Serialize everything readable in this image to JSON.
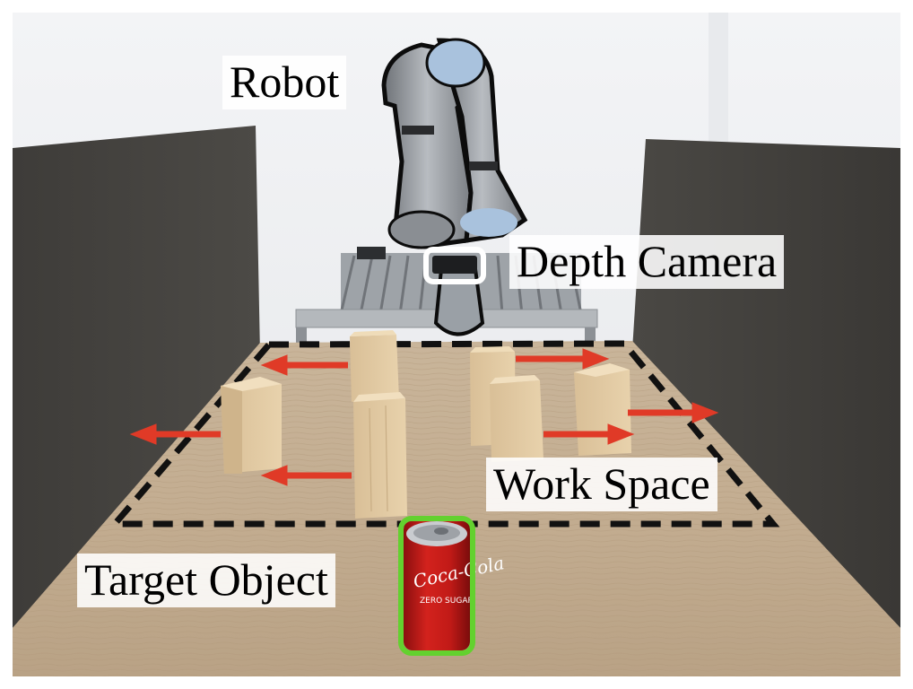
{
  "labels": {
    "robot": "Robot",
    "depth_camera": "Depth Camera",
    "work_space": "Work Space",
    "target_object": "Target Object"
  },
  "can_text": {
    "brand": "Coca-Cola",
    "sub": "ZERO SUGAR"
  },
  "colors": {
    "arrow": "#e03a27",
    "target_outline": "#63d12f",
    "workspace_outline": "#111111",
    "camera_outline": "#ffffff"
  }
}
